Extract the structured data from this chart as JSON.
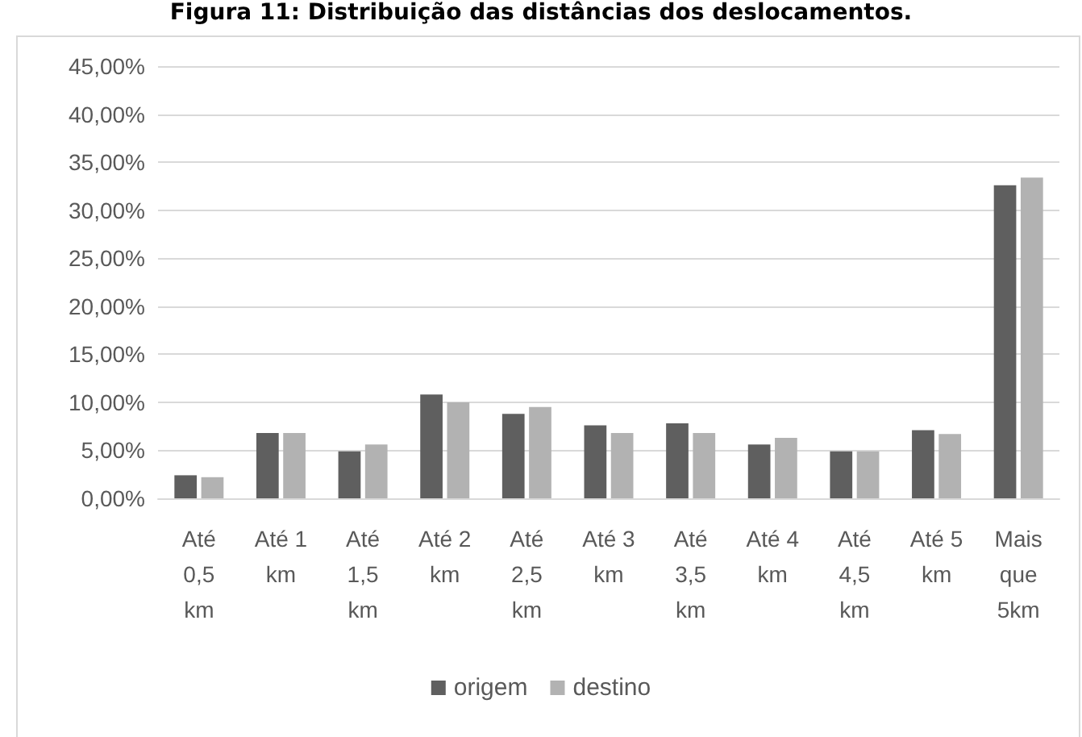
{
  "chart_data": {
    "type": "bar",
    "title": "Figura 11: Distribuição das distâncias dos deslocamentos.",
    "categories": [
      "Até 0,5 km",
      "Até 1 km",
      "Até 1,5 km",
      "Até 2 km",
      "Até 2,5 km",
      "Até 3 km",
      "Até 3,5 km",
      "Até 4 km",
      "Até 4,5 km",
      "Até 5 km",
      "Mais que 5km"
    ],
    "series": [
      {
        "name": "origem",
        "color": "#5f5f5f",
        "values": [
          2.4,
          6.8,
          4.9,
          10.8,
          8.8,
          7.6,
          7.8,
          5.6,
          4.9,
          7.1,
          32.6
        ]
      },
      {
        "name": "destino",
        "color": "#b2b2b2",
        "values": [
          2.2,
          6.8,
          5.6,
          10.0,
          9.5,
          6.8,
          6.8,
          6.3,
          4.9,
          6.7,
          33.4
        ]
      }
    ],
    "ylim": [
      0,
      45
    ],
    "yticks": [
      {
        "value": 0,
        "label": "0,00%"
      },
      {
        "value": 5,
        "label": "5,00%"
      },
      {
        "value": 10,
        "label": "10,00%"
      },
      {
        "value": 15,
        "label": "15,00%"
      },
      {
        "value": 20,
        "label": "20,00%"
      },
      {
        "value": 25,
        "label": "25,00%"
      },
      {
        "value": 30,
        "label": "30,00%"
      },
      {
        "value": 35,
        "label": "35,00%"
      },
      {
        "value": 40,
        "label": "40,00%"
      },
      {
        "value": 45,
        "label": "45,00%"
      }
    ],
    "grid": "y",
    "legend": "bottom"
  }
}
